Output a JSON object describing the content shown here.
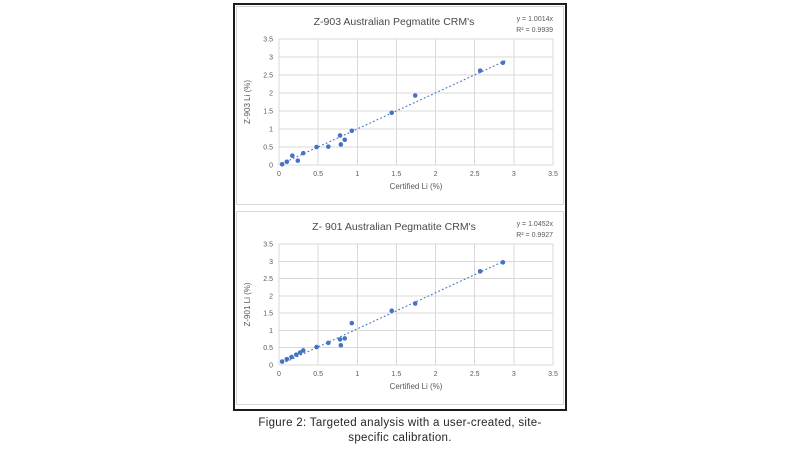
{
  "caption": {
    "line1": "Figure 2: Targeted analysis with a user-created, site-",
    "line2": "specific calibration."
  },
  "colors": {
    "marker": "#4472C4",
    "trendline": "#4472C4",
    "grid": "#D9D9D9",
    "axis_text": "#595959",
    "title_text": "#4a4a4a",
    "frame": "#1c1c1c",
    "panel_border": "#d6d6d6"
  },
  "chart_data": [
    {
      "type": "scatter",
      "title": "Z-903 Australian Pegmatite CRM's",
      "equation": "y = 1.0014x",
      "r_squared": "R² = 0.9939",
      "xlabel": "Certified Li (%)",
      "ylabel": "Z-903 Li (%)",
      "xlim": [
        0,
        3.5
      ],
      "ylim": [
        0,
        3.5
      ],
      "xticks": [
        "0",
        "0.5",
        "1",
        "1.5",
        "2",
        "2.5",
        "3",
        "3.5"
      ],
      "yticks": [
        "0",
        "0.5",
        "1",
        "1.5",
        "2",
        "2.5",
        "3",
        "3.5"
      ],
      "grid": true,
      "legend": "none",
      "slope": 1.0014,
      "trend_x": [
        0.04,
        2.9
      ],
      "points": [
        [
          0.04,
          0.02
        ],
        [
          0.1,
          0.09
        ],
        [
          0.17,
          0.26
        ],
        [
          0.24,
          0.12
        ],
        [
          0.31,
          0.33
        ],
        [
          0.48,
          0.5
        ],
        [
          0.63,
          0.51
        ],
        [
          0.78,
          0.82
        ],
        [
          0.79,
          0.57
        ],
        [
          0.84,
          0.7
        ],
        [
          0.93,
          0.95
        ],
        [
          1.44,
          1.45
        ],
        [
          1.74,
          1.93
        ],
        [
          2.57,
          2.62
        ],
        [
          2.86,
          2.84
        ]
      ]
    },
    {
      "type": "scatter",
      "title": "Z- 901 Australian Pegmatite CRM's",
      "equation": "y = 1.0452x",
      "r_squared": "R² = 0.9927",
      "xlabel": "Certified Li (%)",
      "ylabel": "Z-901 Li (%)",
      "xlim": [
        0,
        3.5
      ],
      "ylim": [
        0,
        3.5
      ],
      "xticks": [
        "0",
        "0.5",
        "1",
        "1.5",
        "2",
        "2.5",
        "3",
        "3.5"
      ],
      "yticks": [
        "0",
        "0.5",
        "1",
        "1.5",
        "2",
        "2.5",
        "3",
        "3.5"
      ],
      "grid": true,
      "legend": "none",
      "slope": 1.0452,
      "trend_x": [
        0.04,
        2.88
      ],
      "points": [
        [
          0.04,
          0.1
        ],
        [
          0.1,
          0.17
        ],
        [
          0.16,
          0.23
        ],
        [
          0.22,
          0.3
        ],
        [
          0.27,
          0.36
        ],
        [
          0.31,
          0.42
        ],
        [
          0.48,
          0.52
        ],
        [
          0.63,
          0.64
        ],
        [
          0.78,
          0.74
        ],
        [
          0.79,
          0.57
        ],
        [
          0.84,
          0.77
        ],
        [
          0.93,
          1.21
        ],
        [
          1.44,
          1.57
        ],
        [
          1.74,
          1.78
        ],
        [
          2.57,
          2.71
        ],
        [
          2.86,
          2.97
        ]
      ]
    }
  ]
}
